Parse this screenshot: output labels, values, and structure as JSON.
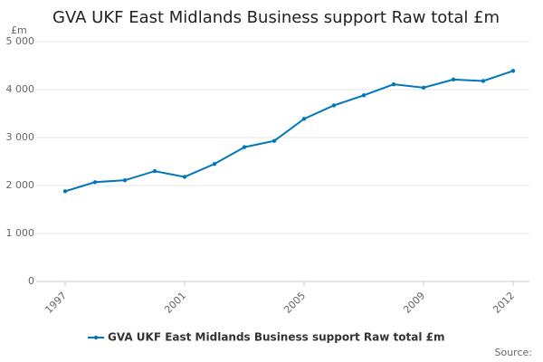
{
  "chart_data": {
    "type": "line",
    "title": "GVA UKF East Midlands Business support Raw total £m",
    "y_axis_label": "£m",
    "x": [
      1997,
      1998,
      1999,
      2000,
      2001,
      2002,
      2003,
      2004,
      2005,
      2006,
      2007,
      2008,
      2009,
      2010,
      2011,
      2012
    ],
    "series": [
      {
        "name": "GVA UKF East Midlands Business support Raw total £m",
        "color": "#0077bb",
        "values": [
          1880,
          2070,
          2110,
          2300,
          2180,
          2450,
          2800,
          2930,
          3390,
          3670,
          3880,
          4110,
          4040,
          4210,
          4180,
          4390
        ]
      }
    ],
    "xlim": [
      1997,
      2012
    ],
    "xticks": [
      1997,
      2001,
      2005,
      2009,
      2012
    ],
    "ylim": [
      0,
      5000
    ],
    "yticks": [
      0,
      {
        "value": 1000,
        "label": "1 000"
      },
      {
        "value": 2000,
        "label": "2 000"
      },
      {
        "value": 3000,
        "label": "3 000"
      },
      {
        "value": 4000,
        "label": "4 000"
      },
      {
        "value": 5000,
        "label": "5 000"
      }
    ],
    "grid": true,
    "source": "Source:"
  }
}
